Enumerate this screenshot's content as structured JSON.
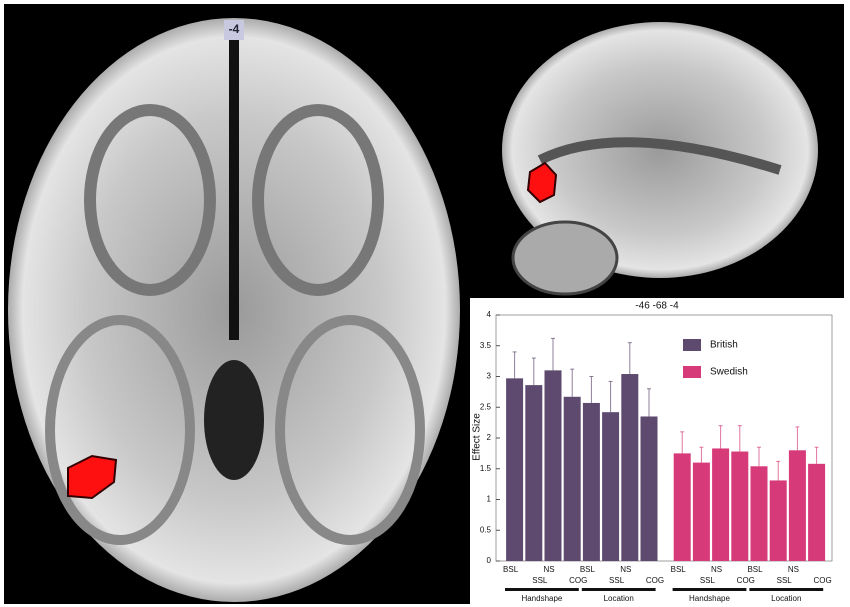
{
  "slice_label": "-4",
  "chart_data": {
    "type": "bar",
    "title": "-46 -68 -4",
    "y_label": "Effect Size",
    "categories": [
      "BSL",
      "SSL",
      "NS",
      "COG",
      "BSL",
      "SSL",
      "NS",
      "COG"
    ],
    "groups": [
      "Handshape",
      "Location"
    ],
    "series": [
      {
        "name": "British",
        "color": "#5e4a6e",
        "values": [
          2.97,
          2.86,
          3.1,
          2.67,
          2.57,
          2.42,
          3.04,
          2.35
        ],
        "errors": [
          0.43,
          0.44,
          0.52,
          0.45,
          0.43,
          0.5,
          0.51,
          0.45
        ]
      },
      {
        "name": "Swedish",
        "color": "#d63a78",
        "values": [
          1.75,
          1.6,
          1.83,
          1.78,
          1.54,
          1.31,
          1.8,
          1.58
        ],
        "errors": [
          0.35,
          0.25,
          0.37,
          0.42,
          0.31,
          0.31,
          0.38,
          0.27
        ]
      }
    ],
    "ylim": [
      0,
      4
    ],
    "yticks": [
      0,
      0.5,
      1,
      1.5,
      2,
      2.5,
      3,
      3.5,
      4
    ]
  }
}
